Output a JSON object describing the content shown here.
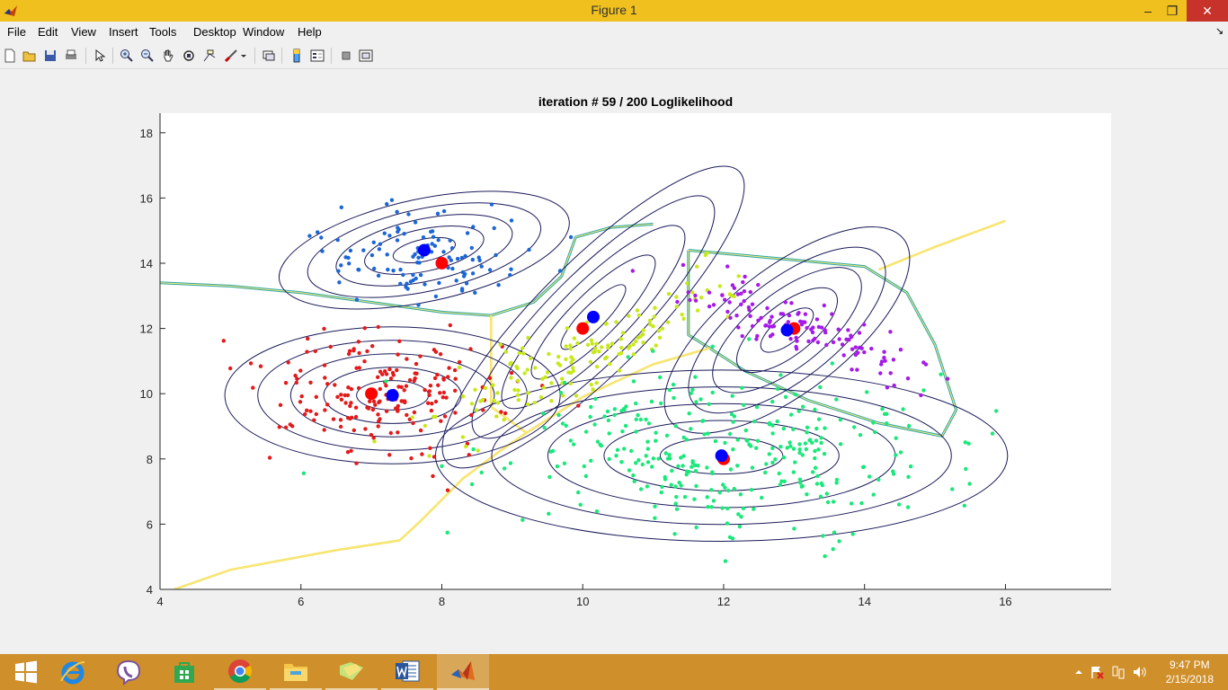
{
  "window": {
    "title": "Figure 1",
    "minimize": "–",
    "maximize": "❐",
    "close": "✕"
  },
  "menu": {
    "items": [
      "File",
      "Edit",
      "View",
      "Insert",
      "Tools",
      "Desktop",
      "Window",
      "Help"
    ],
    "dock_arrow": "↘"
  },
  "toolbar": {
    "icons": [
      "new-figure-icon",
      "open-file-icon",
      "save-figure-icon",
      "print-figure-icon",
      "edit-plot-icon",
      "zoom-in-icon",
      "zoom-out-icon",
      "pan-icon",
      "rotate-3d-icon",
      "data-cursor-icon",
      "brush-icon",
      "link-plot-icon",
      "insert-colorbar-icon",
      "insert-legend-icon",
      "hide-plot-tools-icon",
      "show-plot-tools-icon"
    ]
  },
  "chart_data": {
    "type": "scatter",
    "title": "iteration # 59 / 200 Loglikelihood",
    "xlim": [
      4,
      17.5
    ],
    "ylim": [
      4,
      18.6
    ],
    "x_ticks": [
      4,
      6,
      8,
      10,
      12,
      14,
      16
    ],
    "y_ticks": [
      4,
      6,
      8,
      10,
      12,
      14,
      16,
      18
    ],
    "grid": false,
    "clusters": [
      {
        "color": "#1a66d6",
        "mean": [
          7.75,
          14.2
        ],
        "spread": [
          0.75,
          0.75
        ],
        "count": 110
      },
      {
        "color": "#e31a1a",
        "mean": [
          7.1,
          9.9
        ],
        "spread": [
          0.85,
          1.0
        ],
        "count": 190
      },
      {
        "color": "#c7e91a",
        "mean": [
          10.0,
          11.2
        ],
        "spread": [
          0.95,
          1.35
        ],
        "count": 150
      },
      {
        "color": "#a51ae8",
        "mean": [
          13.0,
          12.1
        ],
        "spread": [
          0.75,
          0.9
        ],
        "count": 130
      },
      {
        "color": "#1ae87a",
        "mean": [
          12.0,
          8.3
        ],
        "spread": [
          1.45,
          1.25
        ],
        "count": 320
      }
    ],
    "true_means": [
      [
        8.0,
        14.0
      ],
      [
        7.0,
        10.0
      ],
      [
        10.0,
        12.0
      ],
      [
        13.0,
        12.0
      ],
      [
        12.0,
        8.0
      ]
    ],
    "estimated_means": [
      [
        7.75,
        14.4
      ],
      [
        7.3,
        9.95
      ],
      [
        10.15,
        12.35
      ],
      [
        12.9,
        11.95
      ],
      [
        11.97,
        8.1
      ]
    ],
    "colors": {
      "true_mean": "#ff0000",
      "estimated_mean": "#0000ff",
      "contour": "#1a1a5a",
      "boundary": "#f0e060"
    }
  },
  "taskbar": {
    "apps": [
      "windows-start-icon",
      "internet-explorer-icon",
      "viber-icon",
      "store-icon",
      "chrome-icon",
      "file-explorer-icon",
      "folder-icon",
      "word-icon",
      "matlab-icon"
    ],
    "tray_icons": [
      "show-hidden-icons-icon",
      "action-center-icon",
      "network-icon",
      "volume-icon"
    ],
    "time": "9:47 PM",
    "date": "2/15/2018"
  }
}
